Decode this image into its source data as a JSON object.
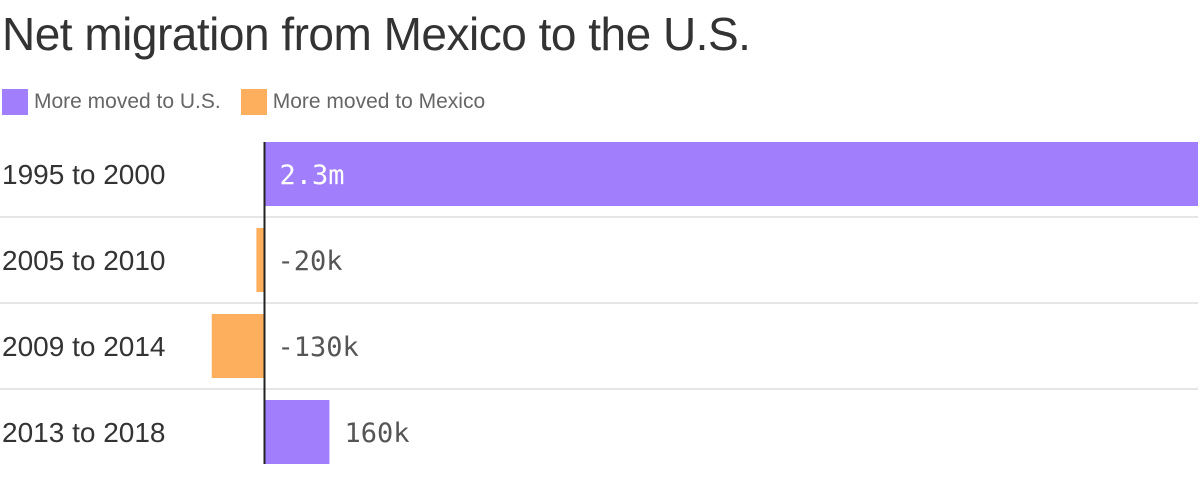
{
  "title": "Net migration from Mexico to the U.S.",
  "legend": [
    {
      "label": "More moved to U.S.",
      "color": "#a17ffc"
    },
    {
      "label": "More moved to Mexico",
      "color": "#feaf5e"
    }
  ],
  "colors": {
    "positive": "#a17ffc",
    "negative": "#feaf5e",
    "text": "#333333",
    "value_text_inside": "#ffffff",
    "value_text_outside": "#555555",
    "axis": "#222222",
    "divider": "#dddddd"
  },
  "chart_data": {
    "type": "bar",
    "orientation": "horizontal",
    "title": "Net migration from Mexico to the U.S.",
    "categories": [
      "1995 to 2000",
      "2005 to 2010",
      "2009 to 2014",
      "2013 to 2018"
    ],
    "values": [
      2300000,
      -20000,
      -130000,
      160000
    ],
    "value_labels": [
      "2.3m",
      "-20k",
      "-130k",
      "160k"
    ],
    "series": [
      {
        "name": "More moved to U.S.",
        "applies_to": "positive values"
      },
      {
        "name": "More moved to Mexico",
        "applies_to": "negative values"
      }
    ],
    "xlim": [
      -130000,
      2300000
    ],
    "legend_position": "top-left",
    "grid": false
  }
}
